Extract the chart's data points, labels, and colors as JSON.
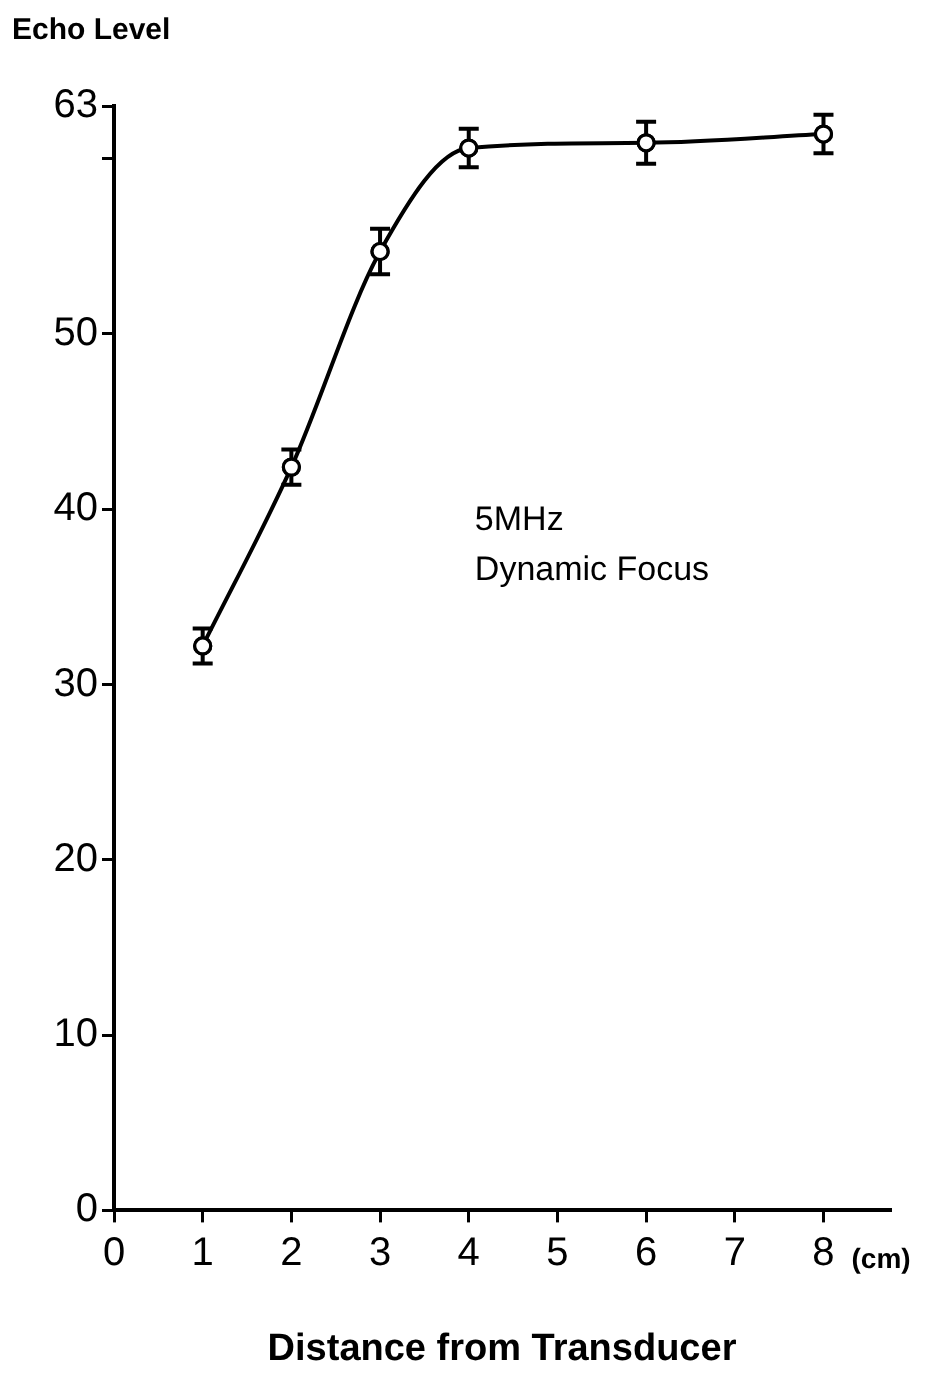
{
  "chart_data": {
    "type": "line",
    "ylabel": "Echo Level",
    "xlabel": "Distance from Transducer",
    "annotations": [
      "5MHz\nDynamic Focus",
      "(cm)"
    ],
    "series": [
      {
        "color": "#000000",
        "x": [
          1,
          2,
          3,
          4,
          6,
          8
        ],
        "values": [
          32.2,
          42.4,
          54.7,
          60.6,
          60.9,
          61.4
        ],
        "errors": [
          1.0,
          1.0,
          1.3,
          1.1,
          1.2,
          1.1
        ]
      }
    ],
    "xlim": [
      0,
      8.75
    ],
    "xticks": [
      0,
      1,
      2,
      3,
      4,
      5,
      6,
      7,
      8
    ],
    "ylim": [
      0,
      63
    ],
    "yticks": [
      0,
      10,
      20,
      30,
      40,
      50,
      {
        "value": 60,
        "label": null
      },
      63
    ],
    "grid": false,
    "legend": false,
    "marker": "circle",
    "line_style": "solid"
  }
}
